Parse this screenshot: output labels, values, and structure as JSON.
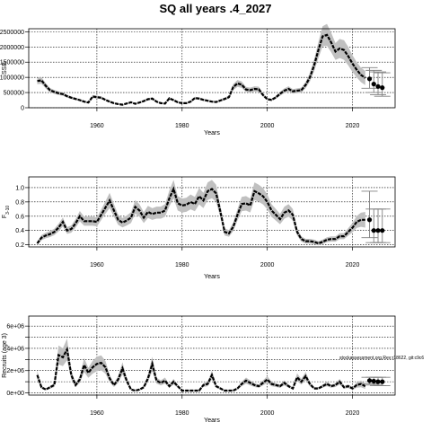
{
  "title": "SQ all years .4_2027",
  "annotation": "stockassessment.org,Rev:r18622, git:c9c6",
  "colors": {
    "line": "#000000",
    "band": "#c0c0c0",
    "grid": "#000000",
    "text": "#000000"
  },
  "chart_data": [
    {
      "type": "line",
      "name": "ssb-panel",
      "xlabel": "Years",
      "ylabel": "SSB",
      "xlim": [
        1944,
        2030
      ],
      "ylim": [
        0,
        2600000
      ],
      "xticks": [
        1960,
        1980,
        2000,
        2020
      ],
      "yticks": [
        0,
        500000,
        1000000,
        1500000,
        2000000,
        2500000
      ],
      "ytick_labels": [
        "0",
        "500000",
        "1000000",
        "1500000",
        "2000000",
        "2500000"
      ],
      "grid": true,
      "x": [
        1946,
        1947,
        1948,
        1949,
        1950,
        1951,
        1952,
        1953,
        1954,
        1955,
        1956,
        1957,
        1958,
        1959,
        1960,
        1961,
        1962,
        1963,
        1964,
        1965,
        1966,
        1967,
        1968,
        1969,
        1970,
        1971,
        1972,
        1973,
        1974,
        1975,
        1976,
        1977,
        1978,
        1979,
        1980,
        1981,
        1982,
        1983,
        1984,
        1985,
        1986,
        1987,
        1988,
        1989,
        1990,
        1991,
        1992,
        1993,
        1994,
        1995,
        1996,
        1997,
        1998,
        1999,
        2000,
        2001,
        2002,
        2003,
        2004,
        2005,
        2006,
        2007,
        2008,
        2009,
        2010,
        2011,
        2012,
        2013,
        2014,
        2015,
        2016,
        2017,
        2018,
        2019,
        2020,
        2021,
        2022,
        2023
      ],
      "y": [
        880000,
        900000,
        720000,
        580000,
        520000,
        480000,
        450000,
        380000,
        330000,
        290000,
        250000,
        200000,
        170000,
        370000,
        350000,
        330000,
        260000,
        200000,
        150000,
        120000,
        100000,
        140000,
        180000,
        130000,
        170000,
        220000,
        280000,
        300000,
        200000,
        150000,
        140000,
        310000,
        250000,
        180000,
        150000,
        150000,
        200000,
        320000,
        300000,
        260000,
        230000,
        200000,
        190000,
        240000,
        290000,
        350000,
        680000,
        800000,
        760000,
        600000,
        580000,
        620000,
        610000,
        420000,
        280000,
        260000,
        340000,
        460000,
        560000,
        620000,
        540000,
        560000,
        580000,
        750000,
        1000000,
        1400000,
        1900000,
        2350000,
        2400000,
        2150000,
        1850000,
        1950000,
        1900000,
        1700000,
        1450000,
        1250000,
        1080000,
        980000
      ],
      "band_width": [
        0.12,
        0.12,
        0.12,
        0.12,
        0.12,
        0.12,
        0.12,
        0.12,
        0.13,
        0.13,
        0.13,
        0.13,
        0.13,
        0.14,
        0.14,
        0.14,
        0.14,
        0.14,
        0.15,
        0.15,
        0.15,
        0.15,
        0.15,
        0.15,
        0.14,
        0.14,
        0.14,
        0.14,
        0.14,
        0.14,
        0.14,
        0.14,
        0.14,
        0.14,
        0.14,
        0.14,
        0.14,
        0.14,
        0.14,
        0.14,
        0.14,
        0.14,
        0.14,
        0.14,
        0.14,
        0.14,
        0.14,
        0.14,
        0.14,
        0.14,
        0.14,
        0.14,
        0.14,
        0.14,
        0.14,
        0.14,
        0.14,
        0.14,
        0.14,
        0.14,
        0.14,
        0.14,
        0.14,
        0.14,
        0.14,
        0.14,
        0.14,
        0.14,
        0.15,
        0.15,
        0.15,
        0.16,
        0.17,
        0.18,
        0.19,
        0.2,
        0.22,
        0.24
      ],
      "forecast": {
        "x": [
          2024,
          2025,
          2026,
          2027
        ],
        "y": [
          950000,
          780000,
          700000,
          660000
        ],
        "lower": [
          640000,
          500000,
          430000,
          380000
        ],
        "upper": [
          1320000,
          1230000,
          1180000,
          1150000
        ]
      }
    },
    {
      "type": "line",
      "name": "fbar-panel",
      "xlabel": "Years",
      "ylabel": "F",
      "ylabel_sub": "3-10",
      "xlim": [
        1944,
        2030
      ],
      "ylim": [
        0.17,
        1.15
      ],
      "xticks": [
        1960,
        1980,
        2000,
        2020
      ],
      "yticks": [
        0.2,
        0.4,
        0.6,
        0.8,
        1.0
      ],
      "ytick_labels": [
        "0.2",
        "0.4",
        "0.6",
        "0.8",
        "1.0"
      ],
      "grid": true,
      "x": [
        1946,
        1947,
        1948,
        1949,
        1950,
        1951,
        1952,
        1953,
        1954,
        1955,
        1956,
        1957,
        1958,
        1959,
        1960,
        1961,
        1962,
        1963,
        1964,
        1965,
        1966,
        1967,
        1968,
        1969,
        1970,
        1971,
        1972,
        1973,
        1974,
        1975,
        1976,
        1977,
        1978,
        1979,
        1980,
        1981,
        1982,
        1983,
        1984,
        1985,
        1986,
        1987,
        1988,
        1989,
        1990,
        1991,
        1992,
        1993,
        1994,
        1995,
        1996,
        1997,
        1998,
        1999,
        2000,
        2001,
        2002,
        2003,
        2004,
        2005,
        2006,
        2007,
        2008,
        2009,
        2010,
        2011,
        2012,
        2013,
        2014,
        2015,
        2016,
        2017,
        2018,
        2019,
        2020,
        2021,
        2022,
        2023
      ],
      "y": [
        0.22,
        0.3,
        0.33,
        0.35,
        0.38,
        0.44,
        0.52,
        0.4,
        0.42,
        0.5,
        0.6,
        0.53,
        0.53,
        0.53,
        0.52,
        0.62,
        0.72,
        0.82,
        0.68,
        0.55,
        0.51,
        0.54,
        0.58,
        0.73,
        0.68,
        0.58,
        0.66,
        0.63,
        0.65,
        0.65,
        0.68,
        0.85,
        0.98,
        0.78,
        0.75,
        0.76,
        0.8,
        0.77,
        0.88,
        0.82,
        0.95,
        0.98,
        0.92,
        0.66,
        0.38,
        0.36,
        0.45,
        0.62,
        0.77,
        0.78,
        0.75,
        0.95,
        0.92,
        0.88,
        0.8,
        0.68,
        0.62,
        0.56,
        0.65,
        0.68,
        0.62,
        0.38,
        0.28,
        0.25,
        0.25,
        0.24,
        0.22,
        0.24,
        0.27,
        0.28,
        0.28,
        0.32,
        0.32,
        0.38,
        0.44,
        0.52,
        0.55,
        0.55
      ],
      "band_width": [
        0.12,
        0.12,
        0.12,
        0.12,
        0.12,
        0.12,
        0.12,
        0.12,
        0.12,
        0.12,
        0.12,
        0.12,
        0.12,
        0.12,
        0.12,
        0.12,
        0.12,
        0.13,
        0.13,
        0.13,
        0.13,
        0.13,
        0.13,
        0.13,
        0.13,
        0.13,
        0.13,
        0.13,
        0.13,
        0.13,
        0.13,
        0.13,
        0.13,
        0.13,
        0.13,
        0.13,
        0.13,
        0.13,
        0.13,
        0.13,
        0.13,
        0.13,
        0.13,
        0.13,
        0.13,
        0.13,
        0.13,
        0.13,
        0.13,
        0.13,
        0.13,
        0.13,
        0.13,
        0.13,
        0.13,
        0.13,
        0.13,
        0.13,
        0.13,
        0.13,
        0.13,
        0.13,
        0.13,
        0.13,
        0.13,
        0.13,
        0.13,
        0.13,
        0.13,
        0.13,
        0.13,
        0.13,
        0.13,
        0.14,
        0.15,
        0.16,
        0.18,
        0.2
      ],
      "forecast": {
        "x": [
          2024,
          2025,
          2026,
          2027
        ],
        "y": [
          0.55,
          0.4,
          0.4,
          0.4
        ],
        "lower": [
          0.3,
          0.23,
          0.23,
          0.23
        ],
        "upper": [
          0.95,
          0.7,
          0.7,
          0.7
        ]
      }
    },
    {
      "type": "line",
      "name": "recruitment-panel",
      "xlabel": "Years",
      "ylabel": "Recruits (age 3)",
      "xlim": [
        1944,
        2030
      ],
      "ylim": [
        -200000,
        6900000
      ],
      "xticks": [
        1960,
        1980,
        2000,
        2020
      ],
      "yticks": [
        0,
        1000000,
        2000000,
        3000000,
        4000000,
        5000000,
        6000000
      ],
      "ytick_labels": [
        "0e+00",
        "",
        "2e+06",
        "",
        "4e+06",
        "",
        "6e+06"
      ],
      "grid": true,
      "x": [
        1946,
        1947,
        1948,
        1949,
        1950,
        1951,
        1952,
        1953,
        1954,
        1955,
        1956,
        1957,
        1958,
        1959,
        1960,
        1961,
        1962,
        1963,
        1964,
        1965,
        1966,
        1967,
        1968,
        1969,
        1970,
        1971,
        1972,
        1973,
        1974,
        1975,
        1976,
        1977,
        1978,
        1979,
        1980,
        1981,
        1982,
        1983,
        1984,
        1985,
        1986,
        1987,
        1988,
        1989,
        1990,
        1991,
        1992,
        1993,
        1994,
        1995,
        1996,
        1997,
        1998,
        1999,
        2000,
        2001,
        2002,
        2003,
        2004,
        2005,
        2006,
        2007,
        2008,
        2009,
        2010,
        2011,
        2012,
        2013,
        2014,
        2015,
        2016,
        2017,
        2018,
        2019,
        2020,
        2021,
        2022,
        2023
      ],
      "y": [
        1600000,
        500000,
        300000,
        500000,
        700000,
        3400000,
        3200000,
        3900000,
        1600000,
        700000,
        1200000,
        2500000,
        1800000,
        2300000,
        2600000,
        2700000,
        2300000,
        1300000,
        700000,
        1200000,
        2200000,
        1100000,
        300000,
        200000,
        300000,
        500000,
        1300000,
        2600000,
        1100000,
        900000,
        1100000,
        600000,
        1000000,
        600000,
        200000,
        200000,
        200000,
        200000,
        200000,
        700000,
        800000,
        1600000,
        600000,
        400000,
        200000,
        200000,
        200000,
        400000,
        800000,
        1100000,
        900000,
        700000,
        600000,
        900000,
        1200000,
        800000,
        700000,
        600000,
        900000,
        600000,
        400000,
        1400000,
        1000000,
        1500000,
        800000,
        400000,
        400000,
        600000,
        800000,
        600000,
        700000,
        1000000,
        500000,
        600000,
        400000,
        700000,
        800000,
        600000
      ],
      "band_width": [
        0.25,
        0.25,
        0.25,
        0.25,
        0.25,
        0.25,
        0.25,
        0.25,
        0.25,
        0.25,
        0.25,
        0.25,
        0.25,
        0.25,
        0.25,
        0.25,
        0.25,
        0.25,
        0.25,
        0.25,
        0.25,
        0.25,
        0.25,
        0.25,
        0.25,
        0.25,
        0.25,
        0.25,
        0.25,
        0.25,
        0.25,
        0.25,
        0.25,
        0.25,
        0.25,
        0.25,
        0.25,
        0.25,
        0.25,
        0.25,
        0.25,
        0.25,
        0.25,
        0.25,
        0.25,
        0.25,
        0.25,
        0.25,
        0.25,
        0.25,
        0.25,
        0.25,
        0.25,
        0.25,
        0.25,
        0.25,
        0.25,
        0.25,
        0.25,
        0.25,
        0.25,
        0.25,
        0.25,
        0.25,
        0.25,
        0.25,
        0.25,
        0.25,
        0.25,
        0.25,
        0.25,
        0.25,
        0.25,
        0.27,
        0.3,
        0.33,
        0.37,
        0.4
      ],
      "forecast": {
        "x": [
          2024,
          2025,
          2026,
          2027
        ],
        "y": [
          1100000,
          1050000,
          1000000,
          1000000
        ],
        "lower": [
          800000,
          700000,
          650000,
          650000
        ],
        "upper": [
          1400000,
          1400000,
          1400000,
          1400000
        ]
      }
    }
  ]
}
